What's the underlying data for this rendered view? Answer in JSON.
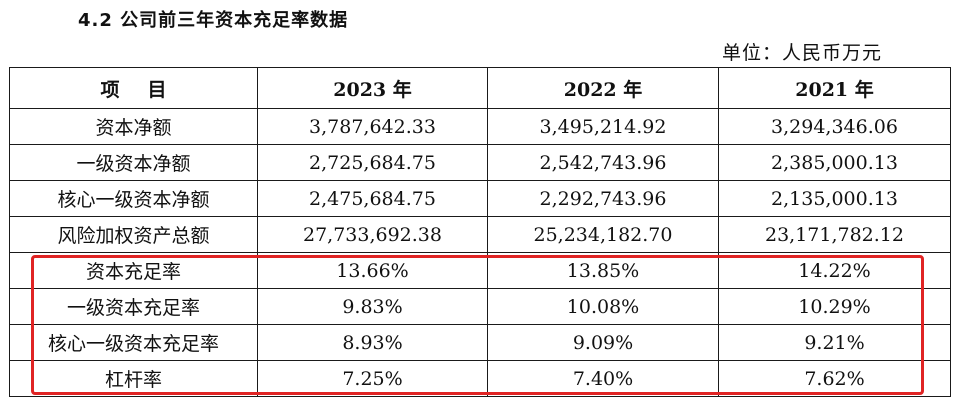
{
  "heading": "4.2  公司前三年资本充足率数据",
  "unit": "单位：人民币万元",
  "colors": {
    "highlight": "#e02424"
  },
  "table": {
    "headers": [
      "项目",
      "2023 年",
      "2022 年",
      "2021 年"
    ],
    "rows": [
      [
        "资本净额",
        "3,787,642.33",
        "3,495,214.92",
        "3,294,346.06"
      ],
      [
        "一级资本净额",
        "2,725,684.75",
        "2,542,743.96",
        "2,385,000.13"
      ],
      [
        "核心一级资本净额",
        "2,475,684.75",
        "2,292,743.96",
        "2,135,000.13"
      ],
      [
        "风险加权资产总额",
        "27,733,692.38",
        "25,234,182.70",
        "23,171,782.12"
      ],
      [
        "资本充足率",
        "13.66%",
        "13.85%",
        "14.22%"
      ],
      [
        "一级资本充足率",
        "9.83%",
        "10.08%",
        "10.29%"
      ],
      [
        "核心一级资本充足率",
        "8.93%",
        "9.09%",
        "9.21%"
      ],
      [
        "杠杆率",
        "7.25%",
        "7.40%",
        "7.62%"
      ]
    ]
  }
}
